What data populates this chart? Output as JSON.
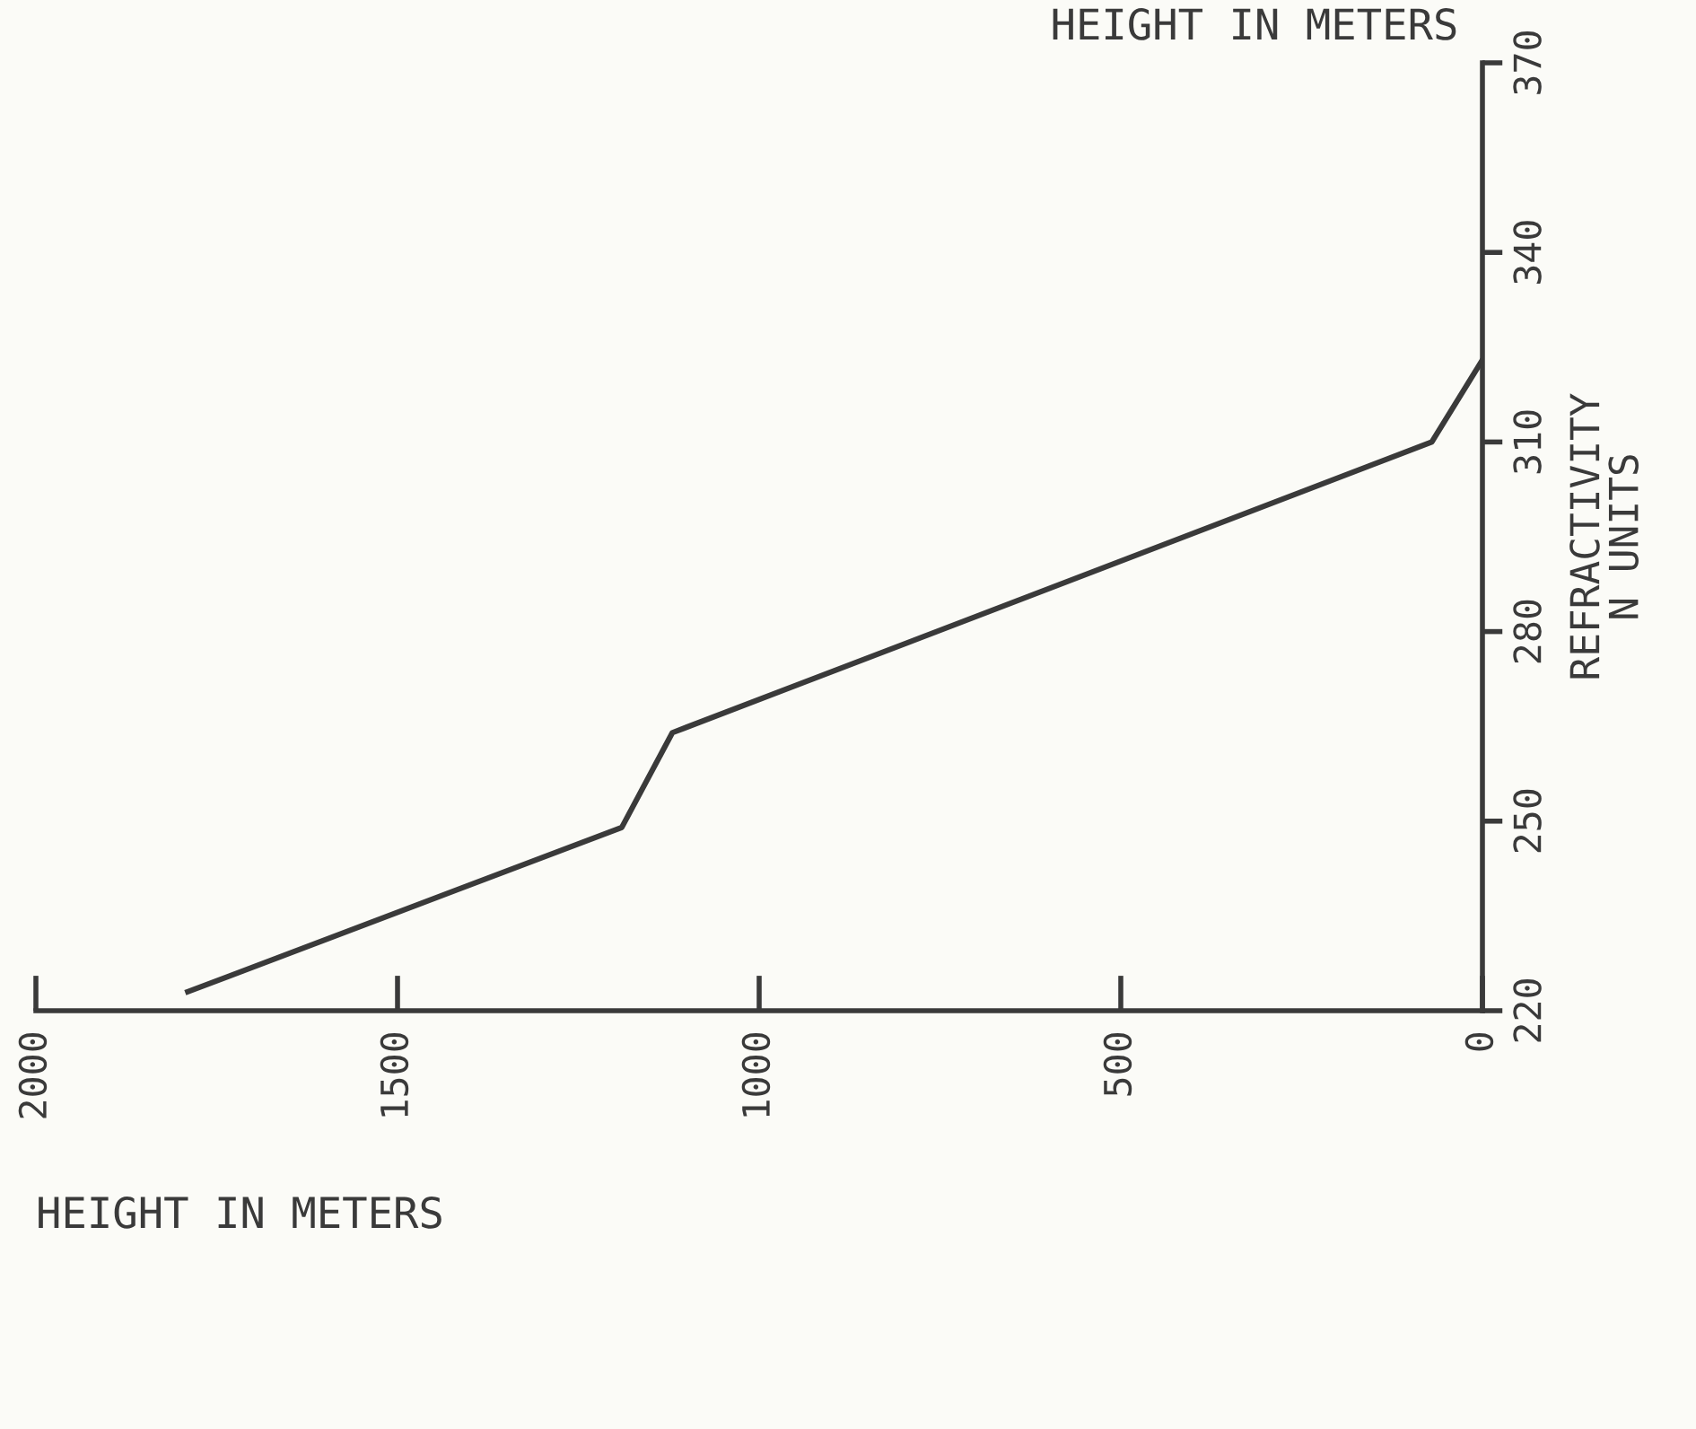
{
  "chart_data": {
    "type": "line",
    "xlabel": "HEIGHT IN METERS",
    "ylabel": "REFRACTIVITY\nN UNITS",
    "annotations": [
      "HEIGHT IN METERS"
    ],
    "x": [
      1790,
      1190,
      1120,
      70,
      0
    ],
    "series": [
      {
        "color": "#3a3a3a",
        "values": [
          223,
          249,
          264,
          310,
          323
        ]
      }
    ],
    "xlim": [
      2000,
      0
    ],
    "xticks": [
      2000,
      1500,
      1000,
      500,
      0
    ],
    "ylim": [
      220,
      370
    ],
    "yticks": [
      220,
      250,
      280,
      310,
      340,
      370
    ],
    "grid": false,
    "marker": "none",
    "line_style": "solid"
  }
}
